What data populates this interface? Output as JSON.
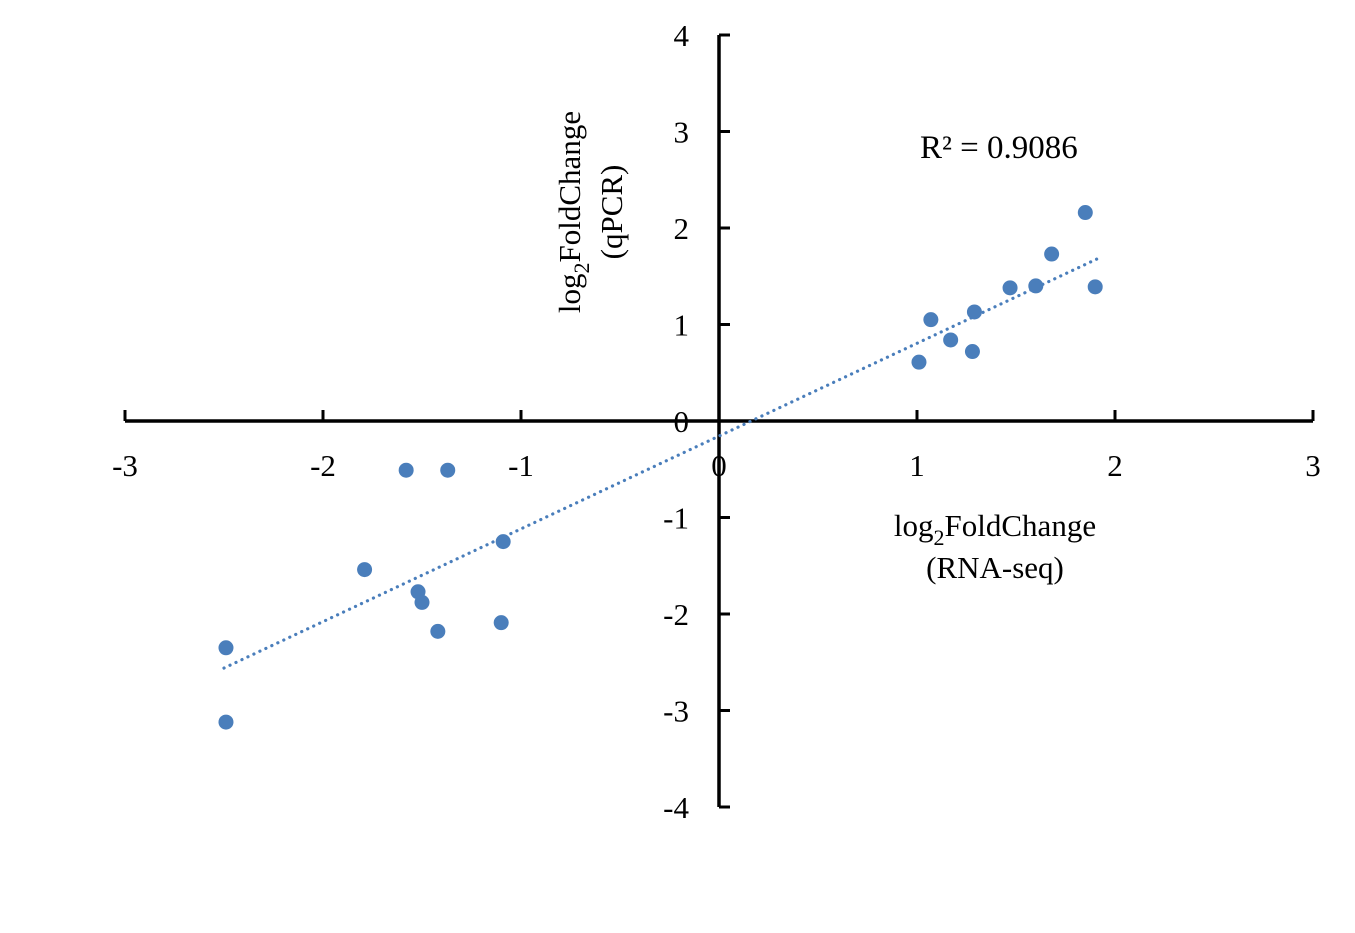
{
  "chart_data": {
    "type": "scatter",
    "title": "",
    "xlabel": {
      "main": "log",
      "sub": "2",
      "rest": "FoldChange",
      "line2": "(RNA-seq)"
    },
    "ylabel": {
      "main": "log",
      "sub": "2",
      "rest": "FoldChange",
      "line2": "(qPCR)"
    },
    "xlim": [
      -3,
      3
    ],
    "ylim": [
      -4,
      4
    ],
    "x_ticks": [
      -3,
      -2,
      -1,
      0,
      1,
      2,
      3
    ],
    "x_tick_labels": [
      "-3",
      "-2",
      "-1",
      "0",
      "1",
      "2",
      "3"
    ],
    "y_ticks": [
      -4,
      -3,
      -2,
      -1,
      0,
      1,
      2,
      3,
      4
    ],
    "y_tick_labels": [
      "-4",
      "-3",
      "-2",
      "-1",
      "0",
      "1",
      "2",
      "3",
      "4"
    ],
    "grid": false,
    "marker_color": "#4a7ebb",
    "points": [
      {
        "x": -2.49,
        "y": -2.35
      },
      {
        "x": -2.49,
        "y": -3.12
      },
      {
        "x": -1.79,
        "y": -1.54
      },
      {
        "x": -1.52,
        "y": -1.77
      },
      {
        "x": -1.5,
        "y": -1.88
      },
      {
        "x": -1.42,
        "y": -2.18
      },
      {
        "x": -1.1,
        "y": -2.09
      },
      {
        "x": -1.09,
        "y": -1.25
      },
      {
        "x": -1.58,
        "y": -0.51
      },
      {
        "x": -1.37,
        "y": -0.51
      },
      {
        "x": 1.01,
        "y": 0.61
      },
      {
        "x": 1.07,
        "y": 1.05
      },
      {
        "x": 1.17,
        "y": 0.84
      },
      {
        "x": 1.28,
        "y": 0.72
      },
      {
        "x": 1.29,
        "y": 1.13
      },
      {
        "x": 1.47,
        "y": 1.38
      },
      {
        "x": 1.6,
        "y": 1.4
      },
      {
        "x": 1.68,
        "y": 1.73
      },
      {
        "x": 1.85,
        "y": 2.16
      },
      {
        "x": 1.9,
        "y": 1.39
      }
    ],
    "trendline": {
      "style": "dotted",
      "x0": -2.5,
      "y0": -2.56,
      "x1": 1.91,
      "y1": 1.68
    },
    "annotation": "R² = 0.9086"
  }
}
